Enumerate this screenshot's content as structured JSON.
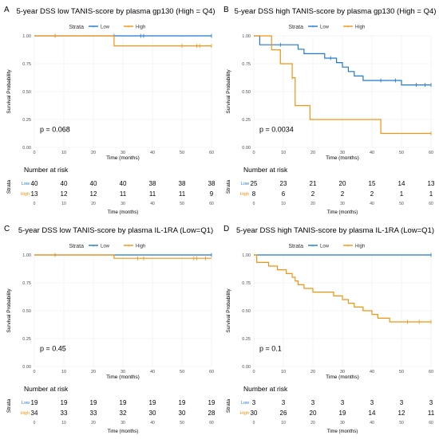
{
  "colors": {
    "low": "#1f78d1",
    "high": "#f5920f",
    "grid": "#ebebeb",
    "text": "#333333",
    "axis": "#4d4d4d"
  },
  "chart_data": [
    {
      "panel_letter": "A",
      "type": "line",
      "title": "5-year DSS low TANIS-score by plasma gp130 (High = Q4)",
      "legend_title": "Strata",
      "legend_position": "top",
      "xlabel": "Time (months)",
      "ylabel": "Survival Probability",
      "xlim": [
        0,
        60
      ],
      "ylim": [
        0,
        1
      ],
      "x_ticks": [
        0,
        10,
        20,
        30,
        40,
        50,
        60
      ],
      "y_ticks": [
        "0.00",
        "0.25",
        "0.50",
        "0.75",
        "1.00"
      ],
      "pvalue": "p = 0.068",
      "series": [
        {
          "name": "Low",
          "color_key": "low",
          "steps": [
            [
              0,
              1.0
            ],
            [
              60,
              1.0
            ]
          ],
          "censors": [
            7,
            27,
            36,
            37,
            60
          ]
        },
        {
          "name": "High",
          "color_key": "high",
          "steps": [
            [
              0,
              1.0
            ],
            [
              27,
              0.91
            ],
            [
              60,
              0.91
            ]
          ],
          "censors": [
            7,
            50,
            55,
            56,
            60
          ]
        }
      ],
      "risk_table": {
        "title": "Number at risk",
        "strata_label": "Strata",
        "xlabel": "Time (months)",
        "times": [
          0,
          10,
          20,
          30,
          40,
          50,
          60
        ],
        "rows": [
          {
            "name": "Low",
            "color_key": "low",
            "values": [
              "40",
              "40",
              "40",
              "40",
              "38",
              "38",
              "38"
            ]
          },
          {
            "name": "High",
            "color_key": "high",
            "values": [
              "13",
              "12",
              "12",
              "11",
              "11",
              "11",
              "9"
            ]
          }
        ]
      }
    },
    {
      "panel_letter": "B",
      "type": "line",
      "title": "5-year DSS high TANIS-score by plasma gp130 (High = Q4)",
      "legend_title": "Strata",
      "legend_position": "top",
      "xlabel": "Time (months)",
      "ylabel": "Survival Probability",
      "xlim": [
        0,
        60
      ],
      "ylim": [
        0,
        1
      ],
      "x_ticks": [
        0,
        10,
        20,
        30,
        40,
        50,
        60
      ],
      "y_ticks": [
        "0.00",
        "0.25",
        "0.50",
        "0.75",
        "1.00"
      ],
      "pvalue": "p = 0.0034",
      "series": [
        {
          "name": "Low",
          "color_key": "low",
          "steps": [
            [
              0,
              1.0
            ],
            [
              2,
              0.92
            ],
            [
              15,
              0.88
            ],
            [
              17,
              0.84
            ],
            [
              24,
              0.8
            ],
            [
              28,
              0.76
            ],
            [
              30,
              0.72
            ],
            [
              32,
              0.68
            ],
            [
              34,
              0.64
            ],
            [
              37,
              0.6
            ],
            [
              50,
              0.56
            ],
            [
              60,
              0.56
            ]
          ],
          "censors": [
            9,
            26,
            43,
            48,
            55,
            58,
            60
          ]
        },
        {
          "name": "High",
          "color_key": "high",
          "steps": [
            [
              0,
              1.0
            ],
            [
              6,
              0.875
            ],
            [
              9,
              0.75
            ],
            [
              13,
              0.625
            ],
            [
              14,
              0.375
            ],
            [
              19,
              0.25
            ],
            [
              43,
              0.125
            ],
            [
              60,
              0.125
            ]
          ],
          "censors": [
            13,
            60
          ]
        }
      ],
      "risk_table": {
        "title": "Number at risk",
        "strata_label": "Strata",
        "xlabel": "Time (months)",
        "times": [
          0,
          10,
          20,
          30,
          40,
          50,
          60
        ],
        "rows": [
          {
            "name": "Low",
            "color_key": "low",
            "values": [
              "25",
              "23",
              "21",
              "20",
              "15",
              "14",
              "13"
            ]
          },
          {
            "name": "High",
            "color_key": "high",
            "values": [
              "8",
              "6",
              "2",
              "2",
              "2",
              "1",
              "1"
            ]
          }
        ]
      }
    },
    {
      "panel_letter": "C",
      "type": "line",
      "title": "5-year DSS low TANIS-score by plasma IL-1RA (Low=Q1)",
      "legend_title": "Strata",
      "legend_position": "top",
      "xlabel": "Time (months)",
      "ylabel": "Survival Probability",
      "xlim": [
        0,
        60
      ],
      "ylim": [
        0,
        1
      ],
      "x_ticks": [
        0,
        10,
        20,
        30,
        40,
        50,
        60
      ],
      "y_ticks": [
        "0.00",
        "0.25",
        "0.50",
        "0.75",
        "1.00"
      ],
      "pvalue": "p = 0.45",
      "series": [
        {
          "name": "Low",
          "color_key": "low",
          "steps": [
            [
              0,
              1.0
            ],
            [
              60,
              1.0
            ]
          ],
          "censors": [
            7,
            60
          ]
        },
        {
          "name": "High",
          "color_key": "high",
          "steps": [
            [
              0,
              1.0
            ],
            [
              27,
              0.97
            ],
            [
              60,
              0.97
            ]
          ],
          "censors": [
            7,
            35,
            37,
            54,
            55,
            58
          ]
        }
      ],
      "risk_table": {
        "title": "Number at risk",
        "strata_label": "Strata",
        "xlabel": "Time (months)",
        "times": [
          0,
          10,
          20,
          30,
          40,
          50,
          60
        ],
        "rows": [
          {
            "name": "Low",
            "color_key": "low",
            "values": [
              "19",
              "19",
              "19",
              "19",
              "19",
              "19",
              "19"
            ]
          },
          {
            "name": "High",
            "color_key": "high",
            "values": [
              "34",
              "33",
              "33",
              "32",
              "30",
              "30",
              "28"
            ]
          }
        ]
      }
    },
    {
      "panel_letter": "D",
      "type": "line",
      "title": "5-year DSS high TANIS-score by plasma IL-1RA (Low=Q1)",
      "legend_title": "Strata",
      "legend_position": "top",
      "xlabel": "Time (months)",
      "ylabel": "Survival Probability",
      "xlim": [
        0,
        60
      ],
      "ylim": [
        0,
        1
      ],
      "x_ticks": [
        0,
        10,
        20,
        30,
        40,
        50,
        60
      ],
      "y_ticks": [
        "0.00",
        "0.25",
        "0.50",
        "0.75",
        "1.00"
      ],
      "pvalue": "p = 0.1",
      "series": [
        {
          "name": "Low",
          "color_key": "low",
          "steps": [
            [
              0,
              1.0
            ],
            [
              60,
              1.0
            ]
          ],
          "censors": [
            60
          ]
        },
        {
          "name": "High",
          "color_key": "high",
          "steps": [
            [
              0,
              1.0
            ],
            [
              1,
              0.933
            ],
            [
              5,
              0.9
            ],
            [
              8,
              0.867
            ],
            [
              11,
              0.833
            ],
            [
              13,
              0.8
            ],
            [
              14,
              0.767
            ],
            [
              15,
              0.733
            ],
            [
              17,
              0.7
            ],
            [
              20,
              0.667
            ],
            [
              27,
              0.633
            ],
            [
              30,
              0.6
            ],
            [
              32,
              0.567
            ],
            [
              34,
              0.533
            ],
            [
              37,
              0.5
            ],
            [
              40,
              0.467
            ],
            [
              42,
              0.433
            ],
            [
              46,
              0.4
            ],
            [
              60,
              0.4
            ]
          ],
          "censors": [
            52,
            56,
            60
          ]
        }
      ],
      "risk_table": {
        "title": "Number at risk",
        "strata_label": "Strata",
        "xlabel": "Time (months)",
        "times": [
          0,
          10,
          20,
          30,
          40,
          50,
          60
        ],
        "rows": [
          {
            "name": "Low",
            "color_key": "low",
            "values": [
              "3",
              "3",
              "3",
              "3",
              "3",
              "3",
              "3"
            ]
          },
          {
            "name": "High",
            "color_key": "high",
            "values": [
              "30",
              "26",
              "20",
              "19",
              "14",
              "12",
              "11"
            ]
          }
        ]
      }
    }
  ]
}
